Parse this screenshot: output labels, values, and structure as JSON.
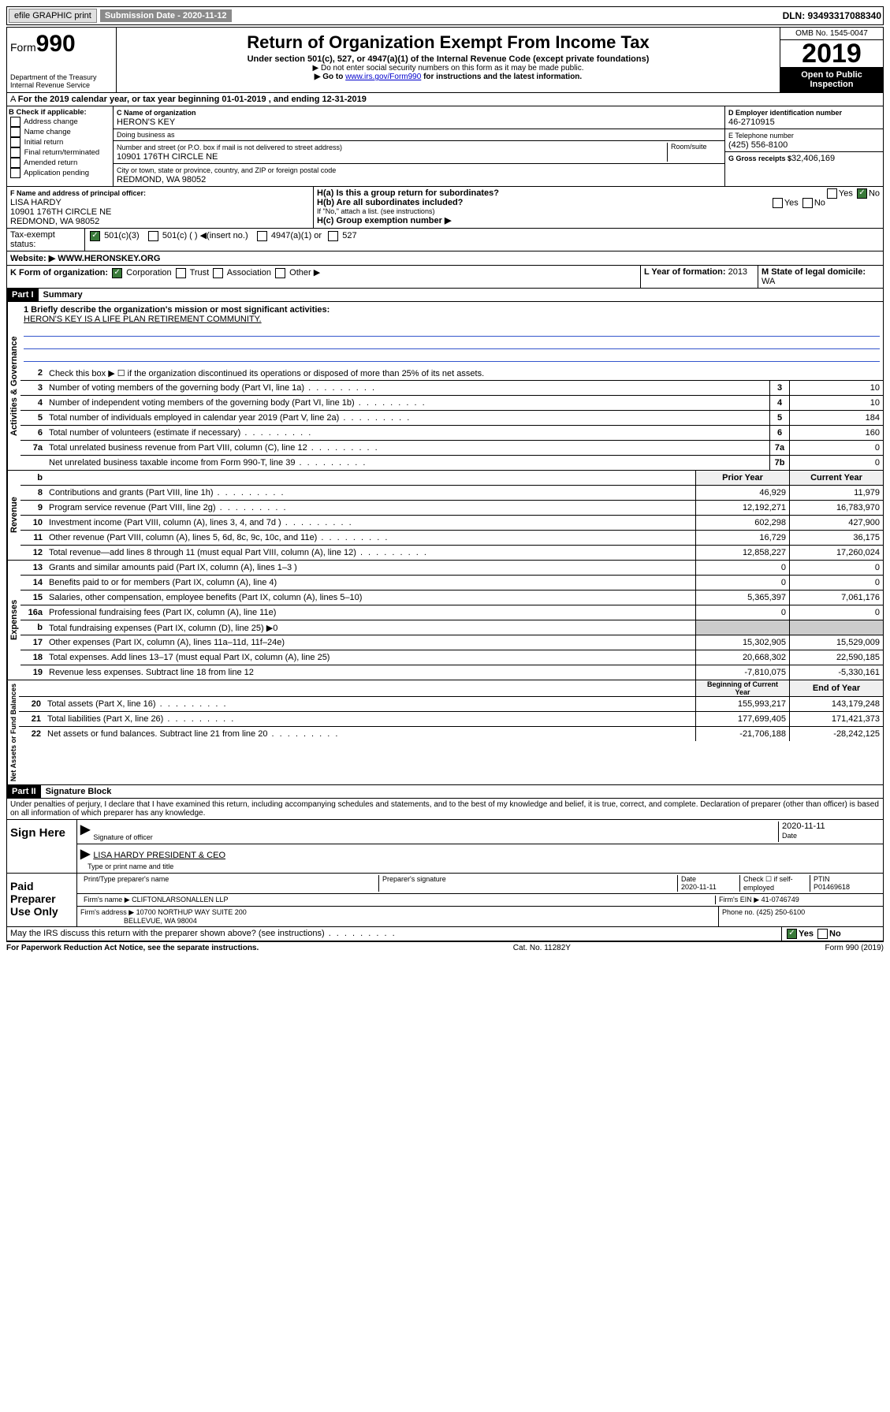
{
  "topbar": {
    "efile": "efile GRAPHIC print",
    "submission": "Submission Date - 2020-11-12",
    "dln": "DLN: 93493317088340"
  },
  "header": {
    "form": "Form",
    "num": "990",
    "dept": "Department of the Treasury\nInternal Revenue Service",
    "title": "Return of Organization Exempt From Income Tax",
    "sub": "Under section 501(c), 527, or 4947(a)(1) of the Internal Revenue Code (except private foundations)",
    "note1": "▶ Do not enter social security numbers on this form as it may be made public.",
    "note2_pre": "▶ Go to ",
    "note2_link": "www.irs.gov/Form990",
    "note2_post": " for instructions and the latest information.",
    "omb": "OMB No. 1545-0047",
    "year": "2019",
    "open": "Open to Public Inspection"
  },
  "periodA": "For the 2019 calendar year, or tax year beginning 01-01-2019   , and ending 12-31-2019",
  "boxB": {
    "hdr": "B Check if applicable:",
    "items": [
      "Address change",
      "Name change",
      "Initial return",
      "Final return/terminated",
      "Amended return",
      "Application pending"
    ]
  },
  "boxC": {
    "lbl": "C Name of organization",
    "name": "HERON'S KEY",
    "dba": "Doing business as",
    "street_lbl": "Number and street (or P.O. box if mail is not delivered to street address)",
    "room": "Room/suite",
    "street": "10901 176TH CIRCLE NE",
    "city_lbl": "City or town, state or province, country, and ZIP or foreign postal code",
    "city": "REDMOND, WA  98052"
  },
  "boxD": {
    "lbl": "D Employer identification number",
    "val": "46-2710915"
  },
  "boxE": {
    "lbl": "E Telephone number",
    "val": "(425) 556-8100"
  },
  "boxG": {
    "lbl": "G Gross receipts $",
    "val": "32,406,169"
  },
  "boxF": {
    "lbl": "F  Name and address of principal officer:",
    "name": "LISA HARDY",
    "addr1": "10901 176TH CIRCLE NE",
    "addr2": "REDMOND, WA  98052"
  },
  "boxH": {
    "a": "H(a)  Is this a group return for subordinates?",
    "b": "H(b)  Are all subordinates included?",
    "bnote": "If \"No,\" attach a list. (see instructions)",
    "c": "H(c)  Group exemption number ▶",
    "yes": "Yes",
    "no": "No"
  },
  "taxI": {
    "lbl": "Tax-exempt status:",
    "c3": "501(c)(3)",
    "c": "501(c) ( ) ◀(insert no.)",
    "a1": "4947(a)(1) or",
    "s527": "527"
  },
  "siteJ": {
    "lbl": "Website: ▶",
    "val": "WWW.HERONSKEY.ORG"
  },
  "boxK": {
    "lbl": "K Form of organization:",
    "corp": "Corporation",
    "trust": "Trust",
    "assoc": "Association",
    "other": "Other ▶"
  },
  "boxL": {
    "lbl": "L Year of formation:",
    "val": "2013"
  },
  "boxM": {
    "lbl": "M State of legal domicile:",
    "val": "WA"
  },
  "part1": {
    "hdr": "Part I",
    "title": "Summary"
  },
  "mission": {
    "lbl": "1  Briefly describe the organization's mission or most significant activities:",
    "txt": "HERON'S KEY IS A LIFE PLAN RETIREMENT COMMUNITY."
  },
  "line2": "Check this box ▶ ☐  if the organization discontinued its operations or disposed of more than 25% of its net assets.",
  "gov": {
    "label": "Activities & Governance",
    "rows": [
      {
        "n": "3",
        "t": "Number of voting members of the governing body (Part VI, line 1a)",
        "b": "3",
        "v": "10"
      },
      {
        "n": "4",
        "t": "Number of independent voting members of the governing body (Part VI, line 1b)",
        "b": "4",
        "v": "10"
      },
      {
        "n": "5",
        "t": "Total number of individuals employed in calendar year 2019 (Part V, line 2a)",
        "b": "5",
        "v": "184"
      },
      {
        "n": "6",
        "t": "Total number of volunteers (estimate if necessary)",
        "b": "6",
        "v": "160"
      },
      {
        "n": "7a",
        "t": "Total unrelated business revenue from Part VIII, column (C), line 12",
        "b": "7a",
        "v": "0"
      },
      {
        "n": "",
        "t": "Net unrelated business taxable income from Form 990-T, line 39",
        "b": "7b",
        "v": "0"
      }
    ]
  },
  "colhdrs": {
    "b": "b",
    "prior": "Prior Year",
    "current": "Current Year"
  },
  "rev": {
    "label": "Revenue",
    "rows": [
      {
        "n": "8",
        "t": "Contributions and grants (Part VIII, line 1h)",
        "p": "46,929",
        "c": "11,979"
      },
      {
        "n": "9",
        "t": "Program service revenue (Part VIII, line 2g)",
        "p": "12,192,271",
        "c": "16,783,970"
      },
      {
        "n": "10",
        "t": "Investment income (Part VIII, column (A), lines 3, 4, and 7d )",
        "p": "602,298",
        "c": "427,900"
      },
      {
        "n": "11",
        "t": "Other revenue (Part VIII, column (A), lines 5, 6d, 8c, 9c, 10c, and 11e)",
        "p": "16,729",
        "c": "36,175"
      },
      {
        "n": "12",
        "t": "Total revenue—add lines 8 through 11 (must equal Part VIII, column (A), line 12)",
        "p": "12,858,227",
        "c": "17,260,024"
      }
    ]
  },
  "exp": {
    "label": "Expenses",
    "rows": [
      {
        "n": "13",
        "t": "Grants and similar amounts paid (Part IX, column (A), lines 1–3 )",
        "p": "0",
        "c": "0"
      },
      {
        "n": "14",
        "t": "Benefits paid to or for members (Part IX, column (A), line 4)",
        "p": "0",
        "c": "0"
      },
      {
        "n": "15",
        "t": "Salaries, other compensation, employee benefits (Part IX, column (A), lines 5–10)",
        "p": "5,365,397",
        "c": "7,061,176"
      },
      {
        "n": "16a",
        "t": "Professional fundraising fees (Part IX, column (A), line 11e)",
        "p": "0",
        "c": "0"
      },
      {
        "n": "b",
        "t": "Total fundraising expenses (Part IX, column (D), line 25) ▶0",
        "p": "",
        "c": "",
        "grey": true
      },
      {
        "n": "17",
        "t": "Other expenses (Part IX, column (A), lines 11a–11d, 11f–24e)",
        "p": "15,302,905",
        "c": "15,529,009"
      },
      {
        "n": "18",
        "t": "Total expenses. Add lines 13–17 (must equal Part IX, column (A), line 25)",
        "p": "20,668,302",
        "c": "22,590,185"
      },
      {
        "n": "19",
        "t": "Revenue less expenses. Subtract line 18 from line 12",
        "p": "-7,810,075",
        "c": "-5,330,161"
      }
    ]
  },
  "net": {
    "label": "Net Assets or Fund Balances",
    "hdr": {
      "p": "Beginning of Current Year",
      "c": "End of Year"
    },
    "rows": [
      {
        "n": "20",
        "t": "Total assets (Part X, line 16)",
        "p": "155,993,217",
        "c": "143,179,248"
      },
      {
        "n": "21",
        "t": "Total liabilities (Part X, line 26)",
        "p": "177,699,405",
        "c": "171,421,373"
      },
      {
        "n": "22",
        "t": "Net assets or fund balances. Subtract line 21 from line 20",
        "p": "-21,706,188",
        "c": "-28,242,125"
      }
    ]
  },
  "part2": {
    "hdr": "Part II",
    "title": "Signature Block"
  },
  "perjury": "Under penalties of perjury, I declare that I have examined this return, including accompanying schedules and statements, and to the best of my knowledge and belief, it is true, correct, and complete. Declaration of preparer (other than officer) is based on all information of which preparer has any knowledge.",
  "sign": {
    "lbl": "Sign Here",
    "sig": "Signature of officer",
    "date": "2020-11-11",
    "datelbl": "Date",
    "name": "LISA HARDY  PRESIDENT & CEO",
    "namelbl": "Type or print name and title"
  },
  "prep": {
    "lbl": "Paid Preparer Use Only",
    "h1": "Print/Type preparer's name",
    "h2": "Preparer's signature",
    "h3": "Date",
    "h3v": "2020-11-11",
    "h4": "Check ☐ if self-employed",
    "h5": "PTIN",
    "h5v": "P01469618",
    "firm": "Firm's name    ▶",
    "firmv": "CLIFTONLARSONALLEN LLP",
    "ein": "Firm's EIN ▶",
    "einv": "41-0746749",
    "addr": "Firm's address ▶",
    "addrv": "10700 NORTHUP WAY SUITE 200",
    "addrv2": "BELLEVUE, WA  98004",
    "phone": "Phone no.",
    "phonev": "(425) 250-6100"
  },
  "discuss": "May the IRS discuss this return with the preparer shown above? (see instructions)",
  "footer": {
    "l": "For Paperwork Reduction Act Notice, see the separate instructions.",
    "m": "Cat. No. 11282Y",
    "r": "Form 990 (2019)"
  }
}
